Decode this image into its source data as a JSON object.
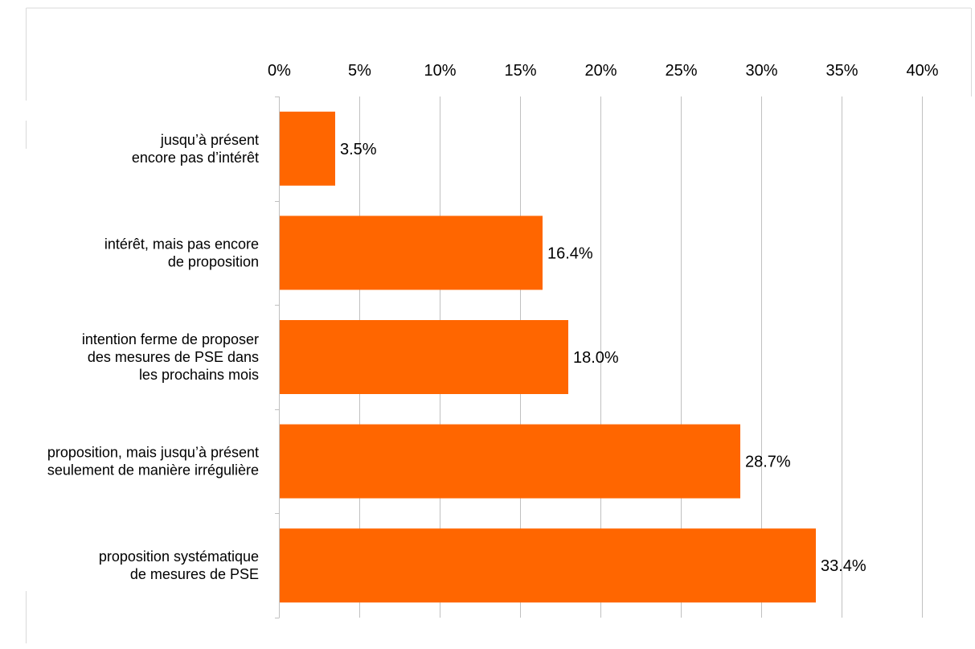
{
  "chart_data": {
    "type": "bar",
    "orientation": "horizontal",
    "categories": [
      "jusqu’à présent\nencore pas d’intérêt",
      "intérêt, mais pas encore\nde proposition",
      "intention ferme de proposer\ndes mesures de PSE dans\nles prochains mois",
      "proposition, mais jusqu’à présent\nseulement de manière irrégulière",
      "proposition systématique\nde mesures de PSE"
    ],
    "values": [
      3.5,
      16.4,
      18.0,
      28.7,
      33.4
    ],
    "data_labels": [
      "3.5%",
      "16.4%",
      "18.0%",
      "28.7%",
      "33.4%"
    ],
    "x_ticks": [
      "0%",
      "5%",
      "10%",
      "15%",
      "20%",
      "25%",
      "30%",
      "35%",
      "40%"
    ],
    "xlim": [
      0,
      40
    ],
    "x_axis_position": "top",
    "grid": true,
    "bar_color": "#FF6600",
    "grid_color": "#C0C0C0",
    "title": "",
    "xlabel": "",
    "ylabel": ""
  }
}
